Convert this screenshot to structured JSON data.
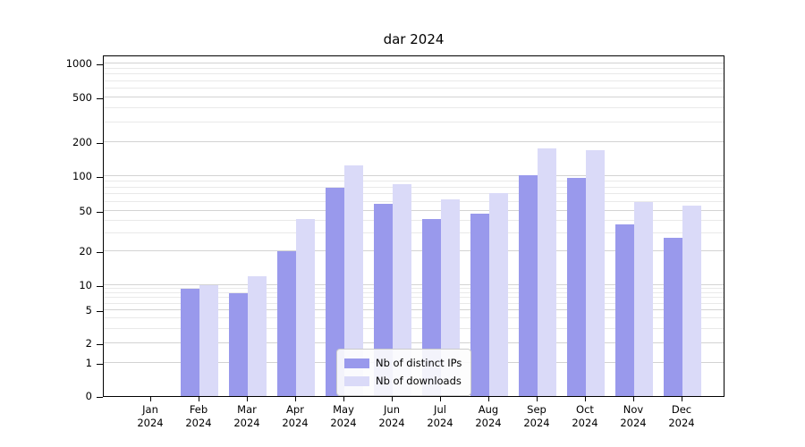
{
  "chart_data": {
    "type": "bar",
    "title": "dar 2024",
    "xlabel": "",
    "ylabel": "",
    "yscale": "symlog",
    "grid": true,
    "legend_position": "bottom-center",
    "ylim": [
      0,
      1050
    ],
    "yticks": [
      0,
      1,
      2,
      5,
      10,
      20,
      50,
      100,
      200,
      500,
      1000
    ],
    "categories": [
      {
        "month": "Jan",
        "year": "2024"
      },
      {
        "month": "Feb",
        "year": "2024"
      },
      {
        "month": "Mar",
        "year": "2024"
      },
      {
        "month": "Apr",
        "year": "2024"
      },
      {
        "month": "May",
        "year": "2024"
      },
      {
        "month": "Jun",
        "year": "2024"
      },
      {
        "month": "Jul",
        "year": "2024"
      },
      {
        "month": "Aug",
        "year": "2024"
      },
      {
        "month": "Sep",
        "year": "2024"
      },
      {
        "month": "Oct",
        "year": "2024"
      },
      {
        "month": "Nov",
        "year": "2024"
      },
      {
        "month": "Dec",
        "year": "2024"
      }
    ],
    "series": [
      {
        "name": "Nb of distinct IPs",
        "color": "#9999ec",
        "values": [
          0,
          9,
          8,
          20,
          80,
          58,
          42,
          47,
          102,
          97,
          37,
          27
        ]
      },
      {
        "name": "Nb of downloads",
        "color": "#dadaf8",
        "values": [
          0,
          10,
          12,
          42,
          125,
          85,
          63,
          72,
          175,
          170,
          60,
          56
        ]
      }
    ]
  }
}
